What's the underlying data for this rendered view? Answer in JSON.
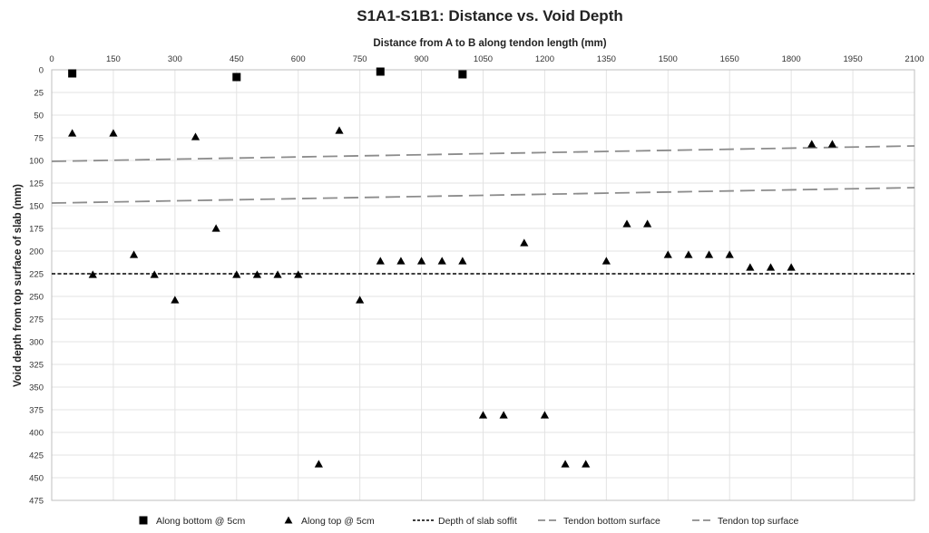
{
  "chart_data": {
    "type": "scatter",
    "title": "S1A1-S1B1: Distance vs. Void Depth",
    "xlabel": "Distance from A to B along tendon length (mm)",
    "ylabel": "Void depth from top surface of slab (mm)",
    "xlim": [
      0,
      2100
    ],
    "ylim": [
      475,
      0
    ],
    "x_ticks": [
      0,
      150,
      300,
      450,
      600,
      750,
      900,
      1050,
      1200,
      1350,
      1500,
      1650,
      1800,
      1950,
      2100
    ],
    "y_ticks": [
      0,
      25,
      50,
      75,
      100,
      125,
      150,
      175,
      200,
      225,
      250,
      275,
      300,
      325,
      350,
      375,
      400,
      425,
      450,
      475
    ],
    "x_axis_position": "top",
    "y_axis_inverted": true,
    "grid": true,
    "legend_position": "bottom",
    "series": [
      {
        "name": "Along bottom @ 5cm",
        "kind": "marker",
        "marker": "square",
        "color": "#000000",
        "points": [
          [
            50,
            4
          ],
          [
            450,
            8
          ],
          [
            800,
            2
          ],
          [
            1000,
            5
          ]
        ]
      },
      {
        "name": "Along top @ 5cm",
        "kind": "marker",
        "marker": "triangle",
        "color": "#000000",
        "points": [
          [
            50,
            70
          ],
          [
            100,
            226
          ],
          [
            150,
            70
          ],
          [
            200,
            204
          ],
          [
            250,
            226
          ],
          [
            300,
            254
          ],
          [
            350,
            74
          ],
          [
            400,
            175
          ],
          [
            450,
            226
          ],
          [
            500,
            226
          ],
          [
            550,
            226
          ],
          [
            600,
            226
          ],
          [
            650,
            435
          ],
          [
            700,
            67
          ],
          [
            750,
            254
          ],
          [
            800,
            211
          ],
          [
            850,
            211
          ],
          [
            900,
            211
          ],
          [
            950,
            211
          ],
          [
            1000,
            211
          ],
          [
            1050,
            381
          ],
          [
            1100,
            381
          ],
          [
            1150,
            191
          ],
          [
            1200,
            381
          ],
          [
            1250,
            435
          ],
          [
            1300,
            435
          ],
          [
            1350,
            211
          ],
          [
            1400,
            170
          ],
          [
            1450,
            170
          ],
          [
            1500,
            204
          ],
          [
            1550,
            204
          ],
          [
            1600,
            204
          ],
          [
            1650,
            204
          ],
          [
            1700,
            218
          ],
          [
            1750,
            218
          ],
          [
            1800,
            218
          ],
          [
            1850,
            82
          ],
          [
            1900,
            82
          ]
        ]
      },
      {
        "name": "Depth of slab soffit",
        "kind": "line",
        "dash": "short",
        "color": "#000000",
        "points": [
          [
            0,
            225
          ],
          [
            2100,
            225
          ]
        ]
      },
      {
        "name": "Tendon bottom surface",
        "kind": "line",
        "dash": "long",
        "color": "#8c8c8c",
        "points": [
          [
            0,
            147
          ],
          [
            2100,
            130
          ]
        ]
      },
      {
        "name": "Tendon top surface",
        "kind": "line",
        "dash": "long",
        "color": "#8c8c8c",
        "points": [
          [
            0,
            101
          ],
          [
            2100,
            84
          ]
        ]
      }
    ]
  }
}
